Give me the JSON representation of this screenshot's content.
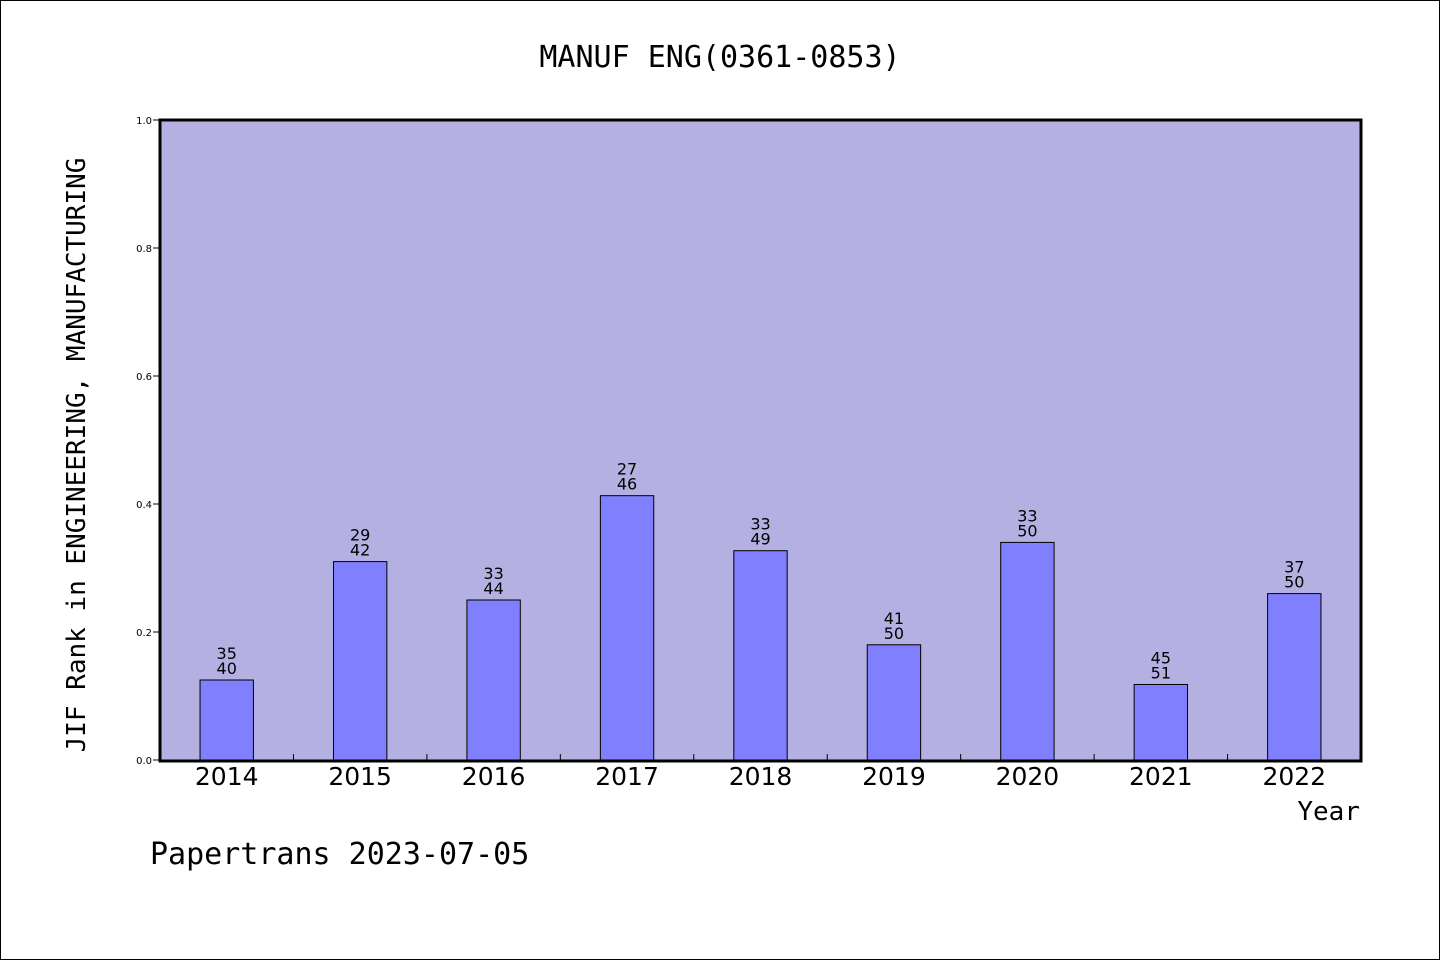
{
  "chart_data": {
    "type": "bar",
    "title": "MANUF ENG(0361-0853)",
    "xlabel": "Year",
    "ylabel": "JIF Rank in ENGINEERING, MANUFACTURING",
    "ylim": [
      0,
      1.0
    ],
    "yticks": [
      "0.0",
      "0.2",
      "0.4",
      "0.6",
      "0.8",
      "1.0"
    ],
    "categories": [
      "2014",
      "2015",
      "2016",
      "2017",
      "2018",
      "2019",
      "2020",
      "2021",
      "2022"
    ],
    "values": [
      0.125,
      0.31,
      0.25,
      0.413,
      0.327,
      0.18,
      0.34,
      0.118,
      0.26
    ],
    "rank": [
      "35",
      "29",
      "33",
      "27",
      "33",
      "41",
      "33",
      "45",
      "37"
    ],
    "total": [
      "40",
      "42",
      "44",
      "46",
      "49",
      "50",
      "50",
      "51",
      "50"
    ],
    "plot_background": "#b5b0e2",
    "bar_color": "#8080ff",
    "grid": false,
    "footer": "Papertrans 2023-07-05"
  }
}
